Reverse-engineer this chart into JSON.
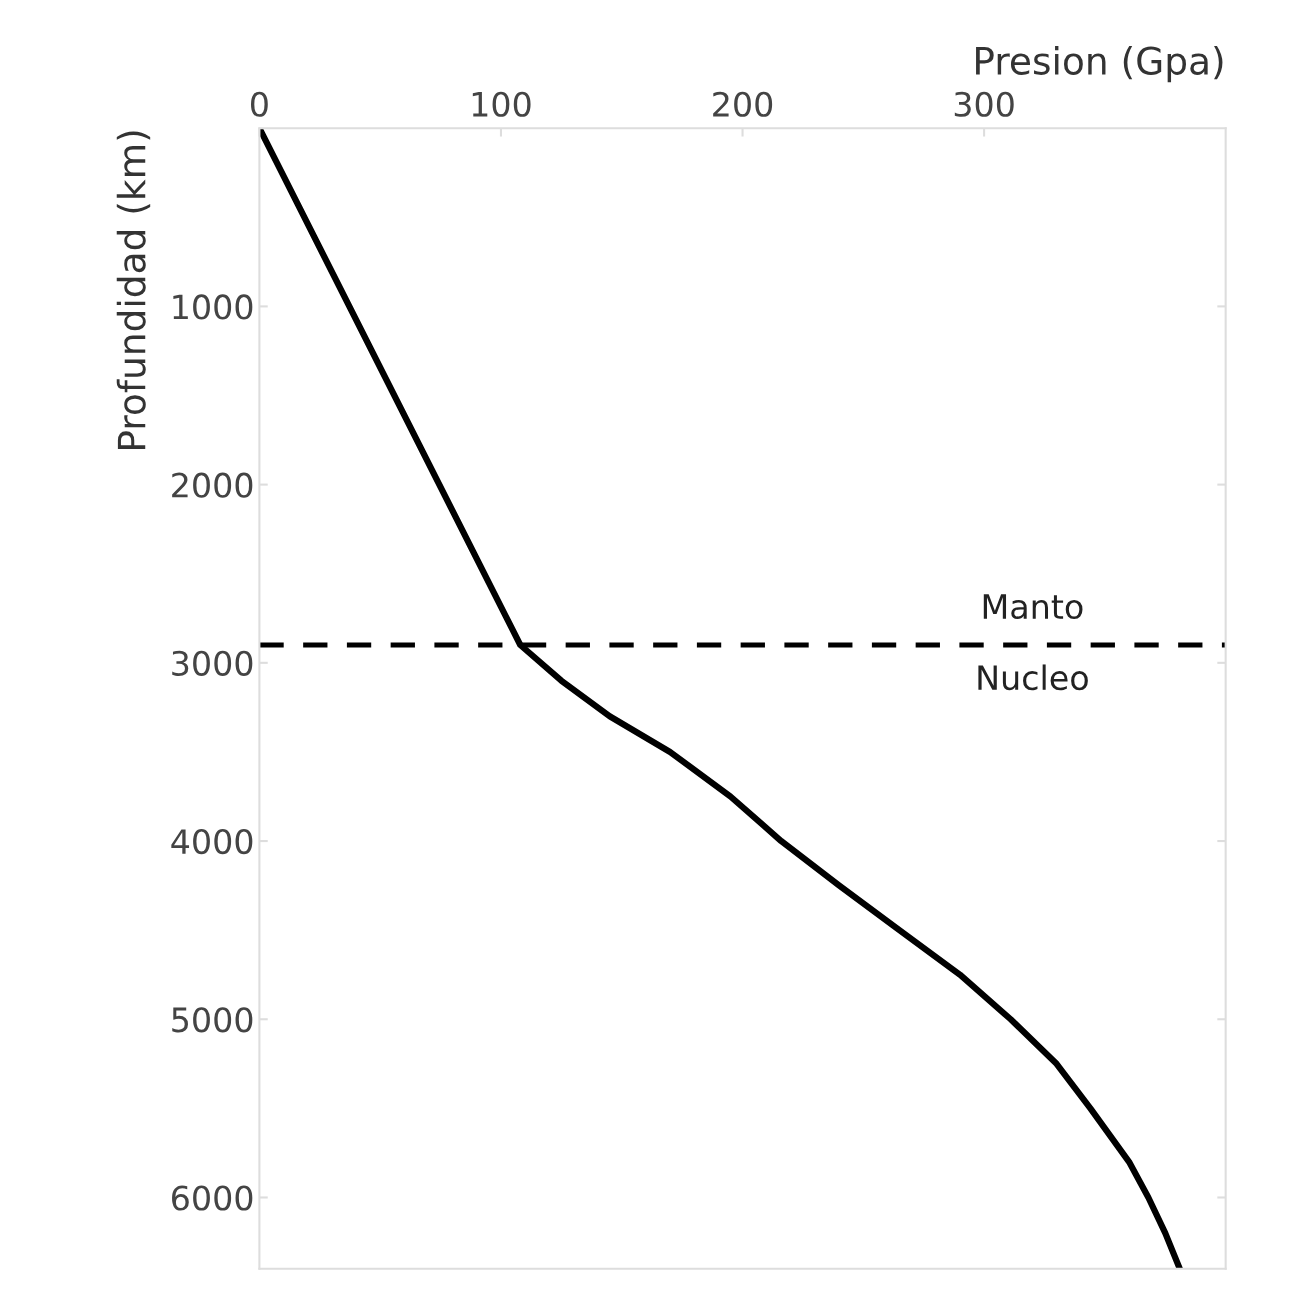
{
  "chart_data": {
    "type": "line",
    "xlabel": "Presion (Gpa)",
    "ylabel": "Profundidad (km)",
    "xlim": [
      0,
      400
    ],
    "xticks": [
      0,
      100,
      200,
      300
    ],
    "ylim": [
      6400,
      0
    ],
    "yticks": [
      1000,
      2000,
      3000,
      4000,
      5000,
      6000
    ],
    "grid": false,
    "legend": false,
    "marker": "none",
    "line_style": "solid",
    "series": [
      {
        "color": "#000000",
        "x": [
          0,
          108,
          125,
          145,
          170,
          195,
          216,
          240,
          265,
          290,
          311,
          330,
          344,
          360,
          368,
          375,
          381
        ],
        "values": [
          0,
          2900,
          3100,
          3300,
          3500,
          3750,
          4000,
          4250,
          4500,
          4750,
          5000,
          5250,
          5500,
          5800,
          6000,
          6200,
          6400
        ]
      }
    ],
    "ref_lines": [
      {
        "axis": "y",
        "value": 2900,
        "label": null,
        "color": "#000000",
        "line_style": "dashed"
      }
    ],
    "annotations": [
      "Manto",
      "Nucleo"
    ]
  }
}
